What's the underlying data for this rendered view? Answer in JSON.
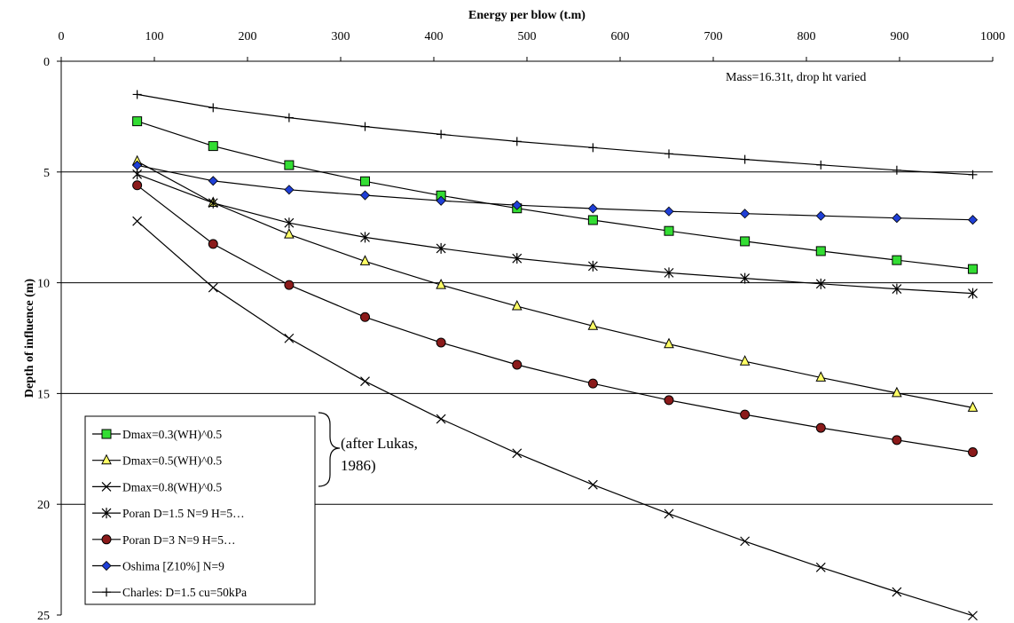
{
  "chart_data": {
    "type": "line",
    "xlabel": "Energy per blow (t.m)",
    "ylabel": "Depth of influence (m)",
    "xlim": [
      0,
      1000
    ],
    "ylim": [
      0,
      25
    ],
    "y_inverted": true,
    "x_axis_position": "top",
    "x_ticks": [
      "0",
      "100",
      "200",
      "300",
      "400",
      "500",
      "600",
      "700",
      "800",
      "900",
      "1000"
    ],
    "y_ticks": [
      "0",
      "5",
      "10",
      "15",
      "20",
      "25"
    ],
    "grid": "horizontal",
    "legend_position": "bottom-left",
    "annotation": "Mass=16.31t, drop ht varied",
    "bracket_note": [
      "(after Lukas,",
      "1986)"
    ],
    "x": [
      81.55,
      163.1,
      244.65,
      326.2,
      407.75,
      489.3,
      570.85,
      652.4,
      733.95,
      815.5,
      897.05,
      978.6
    ],
    "series": [
      {
        "name": "Dmax=0.3(WH)^0.5",
        "marker": "square",
        "color": "#33dd33",
        "values": [
          2.71,
          3.83,
          4.69,
          5.42,
          6.06,
          6.64,
          7.17,
          7.66,
          8.13,
          8.57,
          8.98,
          9.38
        ]
      },
      {
        "name": "Dmax=0.5(WH)^0.5",
        "marker": "triangle",
        "color": "#ffff66",
        "values": [
          4.52,
          6.39,
          7.82,
          9.03,
          10.1,
          11.06,
          11.95,
          12.77,
          13.55,
          14.28,
          14.98,
          15.64
        ]
      },
      {
        "name": "Dmax=0.8(WH)^0.5",
        "marker": "x",
        "color": "#000000",
        "values": [
          7.22,
          10.22,
          12.51,
          14.45,
          16.15,
          17.7,
          19.12,
          20.43,
          21.67,
          22.85,
          23.96,
          25.03
        ]
      },
      {
        "name": "Poran D=1.5 N=9 H=5…",
        "marker": "star",
        "color": "#000000",
        "values": [
          5.1,
          6.4,
          7.3,
          7.95,
          8.45,
          8.9,
          9.25,
          9.55,
          9.8,
          10.05,
          10.28,
          10.48
        ]
      },
      {
        "name": "Poran D=3 N=9 H=5…",
        "marker": "circle",
        "color": "#8b1a1a",
        "values": [
          5.6,
          8.25,
          10.1,
          11.55,
          12.7,
          13.7,
          14.55,
          15.3,
          15.95,
          16.55,
          17.1,
          17.65
        ]
      },
      {
        "name": "Oshima [Z10%] N=9",
        "marker": "diamond",
        "color": "#1f3fd6",
        "values": [
          4.7,
          5.4,
          5.8,
          6.05,
          6.3,
          6.5,
          6.65,
          6.78,
          6.88,
          6.98,
          7.08,
          7.16
        ]
      },
      {
        "name": "Charles: D=1.5 cu=50kPa",
        "marker": "plus",
        "color": "#000000",
        "values": [
          1.5,
          2.1,
          2.55,
          2.95,
          3.3,
          3.62,
          3.9,
          4.18,
          4.43,
          4.68,
          4.92,
          5.12
        ]
      }
    ]
  }
}
